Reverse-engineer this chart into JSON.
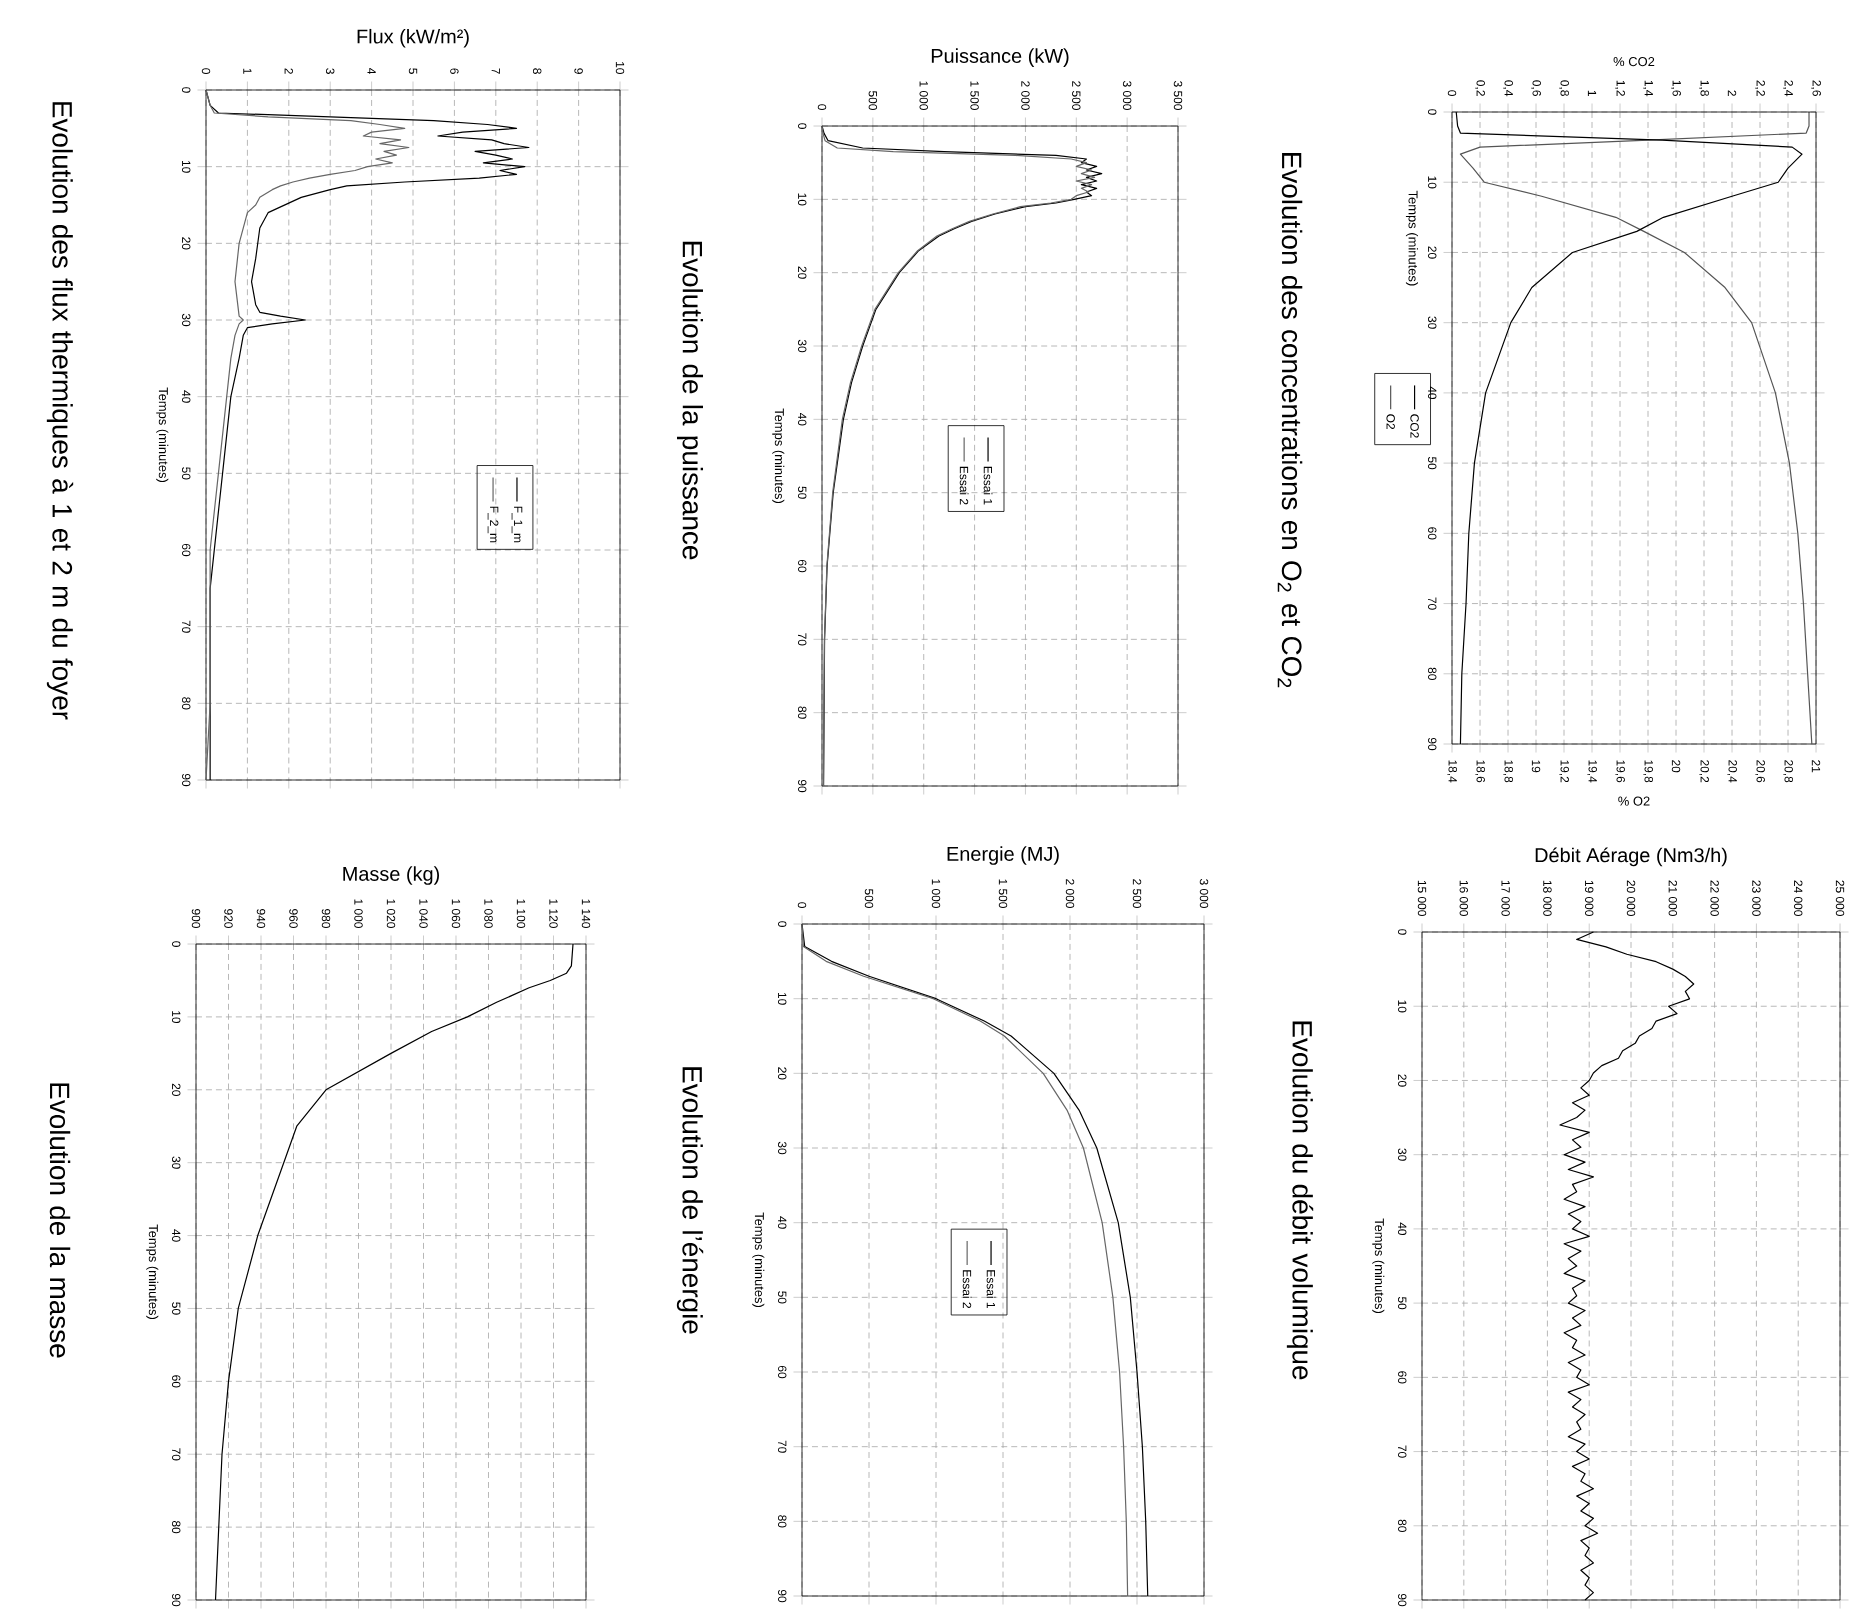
{
  "chart_data": [
    {
      "type": "line",
      "title": "Evolution des concentrations en O$_{2}$ et CO$_{2}$",
      "ylabel": "Temps (minutes)",
      "xlabel": "% O2",
      "x2label": "% CO2",
      "series": [
        {
          "name": "CO2",
          "color": "#000000",
          "axis": "x2",
          "x": [
            0.03,
            0.04,
            0.06,
            1.5,
            2.43,
            2.5,
            2.4,
            2.33,
            2.0,
            1.51,
            1.32,
            0.86,
            0.57,
            0.42,
            0.24,
            0.16,
            0.12,
            0.1,
            0.07,
            0.06
          ],
          "values": [
            0,
            2,
            3,
            4,
            5,
            6,
            8,
            10,
            12,
            15,
            17,
            20,
            25,
            30,
            40,
            50,
            60,
            70,
            80,
            90
          ]
        },
        {
          "name": "O2",
          "color": "#555555",
          "x": [
            20.95,
            20.95,
            20.93,
            19.8,
            18.6,
            18.46,
            18.55,
            18.63,
            19.04,
            19.57,
            19.77,
            20.06,
            20.35,
            20.54,
            20.71,
            20.81,
            20.87,
            20.91,
            20.94,
            20.97
          ],
          "values": [
            0,
            2,
            3,
            4,
            5,
            6,
            8,
            10,
            12,
            15,
            17,
            20,
            25,
            30,
            40,
            50,
            60,
            70,
            80,
            90
          ]
        }
      ],
      "ylim": [
        90,
        0
      ],
      "yticks": [
        0,
        10,
        20,
        30,
        40,
        50,
        60,
        70,
        80,
        90
      ],
      "x2lim": [
        0,
        2.6
      ],
      "x2ticks": [
        0,
        {
          "value": 0.2,
          "label": "0,2"
        },
        {
          "value": 0.4,
          "label": "0,4"
        },
        {
          "value": 0.6,
          "label": "0,6"
        },
        {
          "value": 0.8,
          "label": "0,8"
        },
        1,
        {
          "value": 1.2,
          "label": "1,2"
        },
        {
          "value": 1.4,
          "label": "1,4"
        },
        {
          "value": 1.6,
          "label": "1,6"
        },
        {
          "value": 1.8,
          "label": "1,8"
        },
        2,
        {
          "value": 2.2,
          "label": "2,2"
        },
        {
          "value": 2.4,
          "label": "2,4"
        },
        {
          "value": 2.6,
          "label": "2,6"
        }
      ],
      "xlim": [
        18.4,
        21
      ],
      "xticks": [
        {
          "value": 18.4,
          "label": "18,4"
        },
        {
          "value": 18.6,
          "label": "18,6"
        },
        {
          "value": 18.8,
          "label": "18,8"
        },
        19,
        {
          "value": 19.2,
          "label": "19,2"
        },
        {
          "value": 19.4,
          "label": "19,4"
        },
        {
          "value": 19.6,
          "label": "19,6"
        },
        {
          "value": 19.8,
          "label": "19,8"
        },
        20,
        {
          "value": 20.2,
          "label": "20,2"
        },
        {
          "value": 20.4,
          "label": "20,4"
        },
        {
          "value": 20.6,
          "label": "20,6"
        },
        {
          "value": 20.8,
          "label": "20,8"
        },
        21
      ],
      "grid": true,
      "legend": "left"
    },
    {
      "type": "line",
      "title": "Evolution du débit volumique",
      "ylabel": "Temps (minutes)",
      "xlabel": "Débit Aérage (Nm3/h)",
      "series": [
        {
          "color": "#000000",
          "x": [
            19100,
            18700,
            19400,
            19900,
            20600,
            21000,
            21300,
            21500,
            21300,
            21400,
            20900,
            21100,
            20600,
            20500,
            20200,
            20100,
            19800,
            19700,
            19300,
            19100,
            19000,
            18800,
            19000,
            18600,
            18900,
            18700,
            18300,
            19000,
            18600,
            18800,
            18400,
            18900,
            18500,
            19100,
            18600,
            18700,
            18400,
            18900,
            18500,
            18800,
            18600,
            19000,
            18400,
            18800,
            18500,
            18700,
            18400,
            18900,
            18600,
            18700,
            18500,
            18900,
            18600,
            18800,
            18400,
            18700,
            18600,
            18900,
            18500,
            18800,
            18700,
            19000,
            18500,
            18800,
            18600,
            18900,
            18700,
            18800,
            18500,
            18900,
            18700,
            19000,
            18600,
            18900,
            18800,
            19100,
            18700,
            19000,
            18800,
            19100,
            18900,
            19200,
            18800,
            19000,
            18900,
            19100,
            18800,
            19000,
            18900,
            19100,
            18900
          ],
          "values": [
            0,
            1,
            2,
            3,
            4,
            5,
            6,
            7,
            8,
            9,
            10,
            11,
            12,
            13,
            14,
            15,
            16,
            17,
            18,
            19,
            20,
            21,
            22,
            23,
            24,
            25,
            26,
            27,
            28,
            29,
            30,
            31,
            32,
            33,
            34,
            35,
            36,
            37,
            38,
            39,
            40,
            41,
            42,
            43,
            44,
            45,
            46,
            47,
            48,
            49,
            50,
            51,
            52,
            53,
            54,
            55,
            56,
            57,
            58,
            59,
            60,
            61,
            62,
            63,
            64,
            65,
            66,
            67,
            68,
            69,
            70,
            71,
            72,
            73,
            74,
            75,
            76,
            77,
            78,
            79,
            80,
            81,
            82,
            83,
            84,
            85,
            86,
            87,
            88,
            89,
            90
          ]
        }
      ],
      "ylim": [
        90,
        0
      ],
      "yticks": [
        0,
        10,
        20,
        30,
        40,
        50,
        60,
        70,
        80,
        90
      ],
      "xlim": [
        15000,
        25000
      ],
      "xticks": [
        {
          "value": 15000,
          "label": "15 000"
        },
        {
          "value": 16000,
          "label": "16 000"
        },
        {
          "value": 17000,
          "label": "17 000"
        },
        {
          "value": 18000,
          "label": "18 000"
        },
        {
          "value": 19000,
          "label": "19 000"
        },
        {
          "value": 20000,
          "label": "20 000"
        },
        {
          "value": 21000,
          "label": "21 000"
        },
        {
          "value": 22000,
          "label": "22 000"
        },
        {
          "value": 23000,
          "label": "23 000"
        },
        {
          "value": 24000,
          "label": "24 000"
        },
        {
          "value": 25000,
          "label": "25 000"
        }
      ],
      "grid": true
    },
    {
      "type": "line",
      "title": "Evolution de la puissance",
      "ylabel": "Temps (minutes)",
      "xlabel": "Puissance (kW)",
      "series": [
        {
          "name": "Essai 1",
          "color": "#000000",
          "x": [
            0,
            20,
            60,
            400,
            1200,
            2300,
            2600,
            2550,
            2700,
            2600,
            2750,
            2600,
            2700,
            2550,
            2700,
            2600,
            2650,
            2480,
            2300,
            2000,
            1700,
            1470,
            1300,
            1150,
            950,
            760,
            530,
            400,
            290,
            210,
            110,
            50,
            25,
            20,
            15
          ],
          "values": [
            0,
            1,
            2,
            3,
            3.5,
            4,
            4.5,
            5,
            5.5,
            6,
            6.5,
            7,
            7.5,
            8,
            8.5,
            9,
            9.5,
            10,
            10.5,
            11,
            12,
            13,
            14,
            15,
            17,
            20,
            25,
            30,
            35,
            40,
            50,
            60,
            70,
            80,
            90
          ]
        },
        {
          "name": "Essai 2",
          "color": "#666666",
          "x": [
            0,
            10,
            30,
            150,
            700,
            1900,
            2450,
            2600,
            2500,
            2650,
            2550,
            2680,
            2500,
            2650,
            2550,
            2620,
            2500,
            2450,
            2250,
            1950,
            1680,
            1450,
            1280,
            1130,
            940,
            750,
            520,
            390,
            280,
            200,
            105,
            48,
            24,
            18,
            14
          ],
          "values": [
            0,
            1,
            2,
            3,
            3.5,
            4,
            4.5,
            5,
            5.5,
            6,
            6.5,
            7,
            7.5,
            8,
            8.5,
            9,
            9.5,
            10,
            10.5,
            11,
            12,
            13,
            14,
            15,
            17,
            20,
            25,
            30,
            35,
            40,
            50,
            60,
            70,
            80,
            90
          ]
        }
      ],
      "ylim": [
        90,
        0
      ],
      "yticks": [
        0,
        10,
        20,
        30,
        40,
        50,
        60,
        70,
        80,
        90
      ],
      "xlim": [
        0,
        3500
      ],
      "xticks": [
        0,
        500,
        {
          "value": 1000,
          "label": "1 000"
        },
        {
          "value": 1500,
          "label": "1 500"
        },
        {
          "value": 2000,
          "label": "2 000"
        },
        {
          "value": 2500,
          "label": "2 500"
        },
        {
          "value": 3000,
          "label": "3 000"
        },
        {
          "value": 3500,
          "label": "3 500"
        }
      ],
      "grid": true,
      "legend": "center"
    },
    {
      "type": "line",
      "title": "Evolution de l’énergie",
      "ylabel": "Temps (minutes)",
      "xlabel": "Energie (MJ)",
      "series": [
        {
          "name": "Essai 1",
          "color": "#000000",
          "x": [
            0,
            20,
            220,
            500,
            1000,
            1360,
            1560,
            1880,
            2070,
            2200,
            2360,
            2450,
            2500,
            2540,
            2565,
            2580
          ],
          "values": [
            0,
            3,
            5,
            7,
            10,
            13,
            15,
            20,
            25,
            30,
            40,
            50,
            60,
            70,
            80,
            90
          ]
        },
        {
          "name": "Essai 2",
          "color": "#666666",
          "x": [
            0,
            10,
            180,
            460,
            980,
            1330,
            1510,
            1800,
            1980,
            2100,
            2240,
            2320,
            2370,
            2400,
            2420,
            2430
          ],
          "values": [
            0,
            3,
            5,
            7,
            10,
            13,
            15,
            20,
            25,
            30,
            40,
            50,
            60,
            70,
            80,
            90
          ]
        }
      ],
      "ylim": [
        90,
        0
      ],
      "yticks": [
        0,
        10,
        20,
        30,
        40,
        50,
        60,
        70,
        80,
        90
      ],
      "xlim": [
        0,
        3000
      ],
      "xticks": [
        0,
        500,
        {
          "value": 1000,
          "label": "1 000"
        },
        {
          "value": 1500,
          "label": "1 500"
        },
        {
          "value": 2000,
          "label": "2 000"
        },
        {
          "value": 2500,
          "label": "2 500"
        },
        {
          "value": 3000,
          "label": "3 000"
        }
      ],
      "grid": true,
      "legend": "center"
    },
    {
      "type": "line",
      "title": "Evolution des flux thermiques à 1 et 2 m du foyer",
      "ylabel": "Temps (minutes)",
      "xlabel": "Flux (kW/m²)",
      "series": [
        {
          "name": "F_1_m",
          "color": "#000000",
          "x": [
            0,
            0.1,
            0.3,
            3,
            5.5,
            6.8,
            7.5,
            6.2,
            5.6,
            6.9,
            7.2,
            7.8,
            6.5,
            7.0,
            7.4,
            6.7,
            7.7,
            7.1,
            7.5,
            6.6,
            4.8,
            3.4,
            3.0,
            2.3,
            1.9,
            1.5,
            1.3,
            1.2,
            1.1,
            1.2,
            1.3,
            1.8,
            2.4,
            1.6,
            1.0,
            0.9,
            0.8,
            0.6,
            0.5,
            0.4,
            0.3,
            0.2,
            0.1,
            0.1
          ],
          "values": [
            0,
            2,
            3,
            3.5,
            4,
            4.5,
            5,
            5.5,
            6,
            6.5,
            7,
            7.5,
            8,
            8.5,
            9,
            9.5,
            10,
            10.5,
            11,
            11.5,
            12,
            12.5,
            13,
            14,
            15,
            16,
            18,
            22,
            25,
            28,
            29,
            29.5,
            30,
            30.5,
            31,
            32,
            35,
            40,
            45,
            50,
            55,
            60,
            65,
            90
          ]
        },
        {
          "name": "F_2_m",
          "color": "#666666",
          "x": [
            0,
            0.1,
            0.2,
            1.5,
            3.5,
            4.2,
            4.8,
            4.0,
            3.8,
            4.7,
            4.2,
            4.9,
            4.3,
            4.6,
            4.1,
            4.5,
            3.9,
            3.6,
            3.0,
            2.5,
            2.1,
            1.8,
            1.6,
            1.3,
            1.2,
            1.0,
            0.8,
            0.7,
            0.8,
            0.9,
            0.8,
            0.7,
            0.6,
            0.5,
            0.4,
            0.3,
            0.2,
            0.1,
            0.1,
            0
          ],
          "values": [
            0,
            2,
            3,
            3.5,
            4,
            4.5,
            5,
            5.5,
            6,
            6.5,
            7,
            7.5,
            8,
            8.5,
            9,
            9.5,
            10,
            10.5,
            11,
            11.5,
            12,
            12.5,
            13,
            14,
            15,
            16,
            20,
            25,
            29.5,
            30,
            30.5,
            32,
            35,
            40,
            45,
            50,
            55,
            60,
            80,
            90
          ]
        }
      ],
      "ylim": [
        90,
        0
      ],
      "yticks": [
        0,
        10,
        20,
        30,
        40,
        50,
        60,
        70,
        80,
        90
      ],
      "xlim": [
        0,
        10
      ],
      "xticks": [
        0,
        1,
        2,
        3,
        4,
        5,
        6,
        7,
        8,
        9,
        10
      ],
      "grid": true,
      "legend": "right"
    },
    {
      "type": "line",
      "title": "Evolution de la masse",
      "ylabel": "Temps (minutes)",
      "xlabel": "Masse (kg)",
      "series": [
        {
          "color": "#000000",
          "x": [
            1132,
            1131,
            1128,
            1118,
            1105,
            1085,
            1067,
            1045,
            1020,
            980,
            962,
            954,
            938,
            926,
            920,
            916,
            914,
            912
          ],
          "values": [
            0,
            3,
            4,
            5,
            6,
            8,
            10,
            12,
            15,
            20,
            25,
            30,
            40,
            50,
            60,
            70,
            80,
            90
          ]
        }
      ],
      "ylim": [
        90,
        0
      ],
      "yticks": [
        0,
        10,
        20,
        30,
        40,
        50,
        60,
        70,
        80,
        90
      ],
      "xlim": [
        900,
        1140
      ],
      "xticks": [
        900,
        920,
        940,
        960,
        980,
        {
          "value": 1000,
          "label": "1 000"
        },
        {
          "value": 1020,
          "label": "1 020"
        },
        {
          "value": 1040,
          "label": "1 040"
        },
        {
          "value": 1060,
          "label": "1 060"
        },
        {
          "value": 1080,
          "label": "1 080"
        },
        {
          "value": 1100,
          "label": "1 100"
        },
        {
          "value": 1120,
          "label": "1 120"
        },
        {
          "value": 1140,
          "label": "1 140"
        }
      ],
      "grid": true
    }
  ]
}
